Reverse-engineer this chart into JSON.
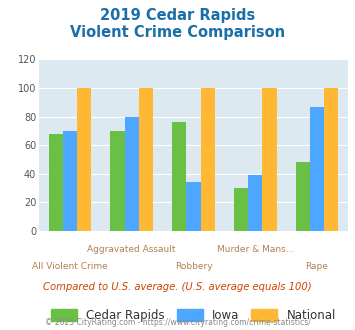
{
  "title_line1": "2019 Cedar Rapids",
  "title_line2": "Violent Crime Comparison",
  "categories": [
    "All Violent Crime",
    "Aggravated Assault",
    "Robbery",
    "Murder & Mans...",
    "Rape"
  ],
  "cedar_rapids": [
    68,
    70,
    76,
    30,
    48
  ],
  "iowa": [
    70,
    80,
    34,
    39,
    87
  ],
  "national": [
    100,
    100,
    100,
    100,
    100
  ],
  "color_cedar": "#6abf45",
  "color_iowa": "#4da6ff",
  "color_national": "#ffb833",
  "ylim": [
    0,
    120
  ],
  "yticks": [
    0,
    20,
    40,
    60,
    80,
    100,
    120
  ],
  "background_color": "#dce9f0",
  "title_color": "#1a6fa8",
  "xlabel_color": "#b08050",
  "footnote": "Compared to U.S. average. (U.S. average equals 100)",
  "credit": "© 2025 CityRating.com - https://www.cityrating.com/crime-statistics/",
  "footnote_color": "#cc4400",
  "credit_color": "#888888",
  "legend_labels": [
    "Cedar Rapids",
    "Iowa",
    "National"
  ]
}
